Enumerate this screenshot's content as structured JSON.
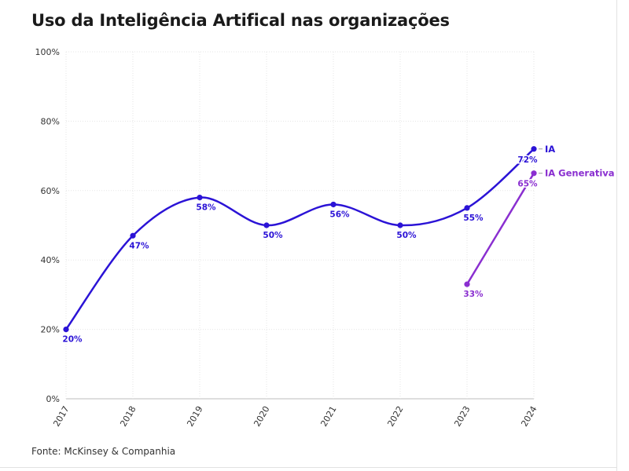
{
  "chart_data": {
    "type": "line",
    "title": "Uso da Inteligência Artifical nas organizações",
    "source": "Fonte: McKinsey & Companhia",
    "x": [
      "2017",
      "2018",
      "2019",
      "2020",
      "2021",
      "2022",
      "2023",
      "2024"
    ],
    "ylim": [
      0,
      100
    ],
    "yticks": [
      "0%",
      "20%",
      "40%",
      "60%",
      "80%",
      "100%"
    ],
    "grid": true,
    "series": [
      {
        "name": "IA",
        "color": "#2b13d6",
        "values": [
          20,
          47,
          58,
          50,
          56,
          50,
          55,
          72
        ],
        "labels": [
          "20%",
          "47%",
          "58%",
          "50%",
          "56%",
          "50%",
          "55%",
          "72%"
        ]
      },
      {
        "name": "IA Generativa",
        "color": "#8a2fd0",
        "values": [
          null,
          null,
          null,
          null,
          null,
          null,
          33,
          65
        ],
        "labels": [
          null,
          null,
          null,
          null,
          null,
          null,
          "33%",
          "65%"
        ]
      }
    ]
  }
}
